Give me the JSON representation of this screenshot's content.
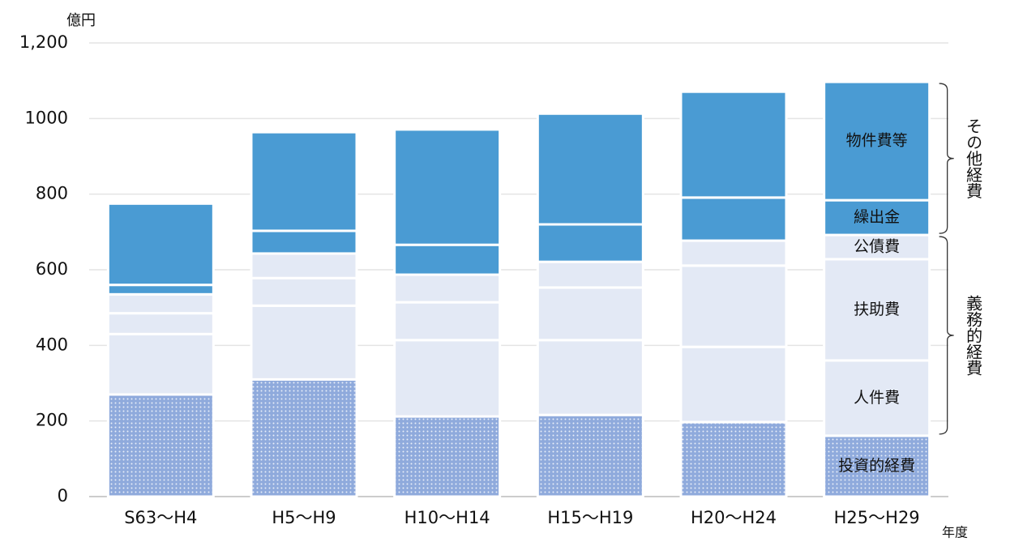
{
  "chart_data": {
    "type": "bar",
    "stacked": true,
    "y_unit": "億円",
    "x_unit": "年度",
    "categories": [
      "S63～H4",
      "H5～H9",
      "H10～H14",
      "H15～H19",
      "H20～H24",
      "H25～H29"
    ],
    "series": [
      {
        "name": "投資的経費",
        "color": "#8faadc",
        "hatch": "dots",
        "values": [
          270,
          310,
          212,
          216,
          197,
          161
        ]
      },
      {
        "name": "人件費",
        "color": "#e3e9f5",
        "values": [
          160,
          195,
          202,
          198,
          199,
          199
        ]
      },
      {
        "name": "扶助費",
        "color": "#e3e9f5",
        "values": [
          55,
          73,
          100,
          139,
          215,
          268
        ]
      },
      {
        "name": "公債費",
        "color": "#e3e9f5",
        "values": [
          50,
          65,
          73,
          68,
          66,
          64
        ]
      },
      {
        "name": "繰出金",
        "color": "#4a9bd3",
        "values": [
          25,
          60,
          79,
          99,
          114,
          92
        ]
      },
      {
        "name": "物件費等",
        "color": "#4a9bd3",
        "values": [
          215,
          261,
          305,
          293,
          280,
          313
        ]
      }
    ],
    "groups": [
      {
        "label": "義務的経費",
        "series": [
          1,
          2,
          3
        ]
      },
      {
        "label": "その他経費",
        "series": [
          4,
          5
        ]
      }
    ],
    "ylim": [
      0,
      1200
    ],
    "yticks": [
      0,
      200,
      400,
      600,
      800,
      1000,
      {
        "value": 1200,
        "label": "1,200"
      }
    ],
    "grid": true
  }
}
